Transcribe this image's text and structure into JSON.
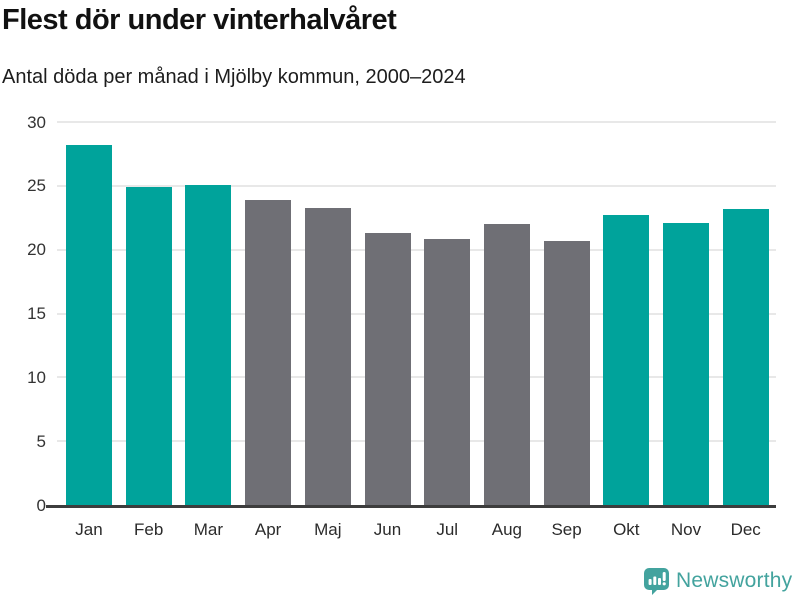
{
  "header": {
    "title": "Flest dör under vinterhalvåret",
    "subtitle": "Antal döda per månad i Mjölby kommun, 2000–2024"
  },
  "chart_data": {
    "type": "bar",
    "title": "Flest dör under vinterhalvåret",
    "subtitle": "Antal döda per månad i Mjölby kommun, 2000–2024",
    "categories": [
      "Jan",
      "Feb",
      "Mar",
      "Apr",
      "Maj",
      "Jun",
      "Jul",
      "Aug",
      "Sep",
      "Okt",
      "Nov",
      "Dec"
    ],
    "values": [
      28.2,
      24.9,
      25.1,
      23.9,
      23.3,
      21.3,
      20.8,
      22.0,
      20.7,
      22.7,
      22.1,
      23.2
    ],
    "highlighted_months": [
      "Jan",
      "Feb",
      "Mar",
      "Okt",
      "Nov",
      "Dec"
    ],
    "highlight_color": "#00a39b",
    "base_color": "#6f6f75",
    "xlabel": "",
    "ylabel": "",
    "ylim": [
      0,
      30
    ],
    "yticks": [
      0,
      5,
      10,
      15,
      20,
      25,
      30
    ],
    "grid": "horizontal",
    "legend": false
  },
  "footer": {
    "brand": "Newsworthy",
    "brand_color": "#43a39e",
    "logo_icon": "newsworthy-speech-bubble-bar-chart"
  }
}
